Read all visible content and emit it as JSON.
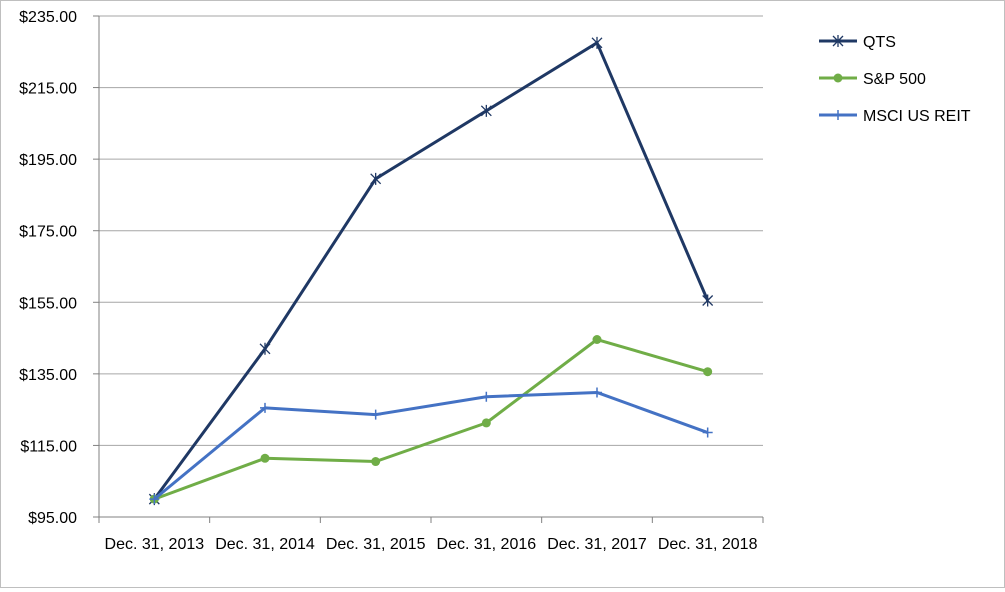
{
  "chart_data": {
    "type": "line",
    "title": "",
    "xlabel": "",
    "ylabel": "",
    "categories": [
      "Dec. 31, 2013",
      "Dec. 31, 2014",
      "Dec. 31, 2015",
      "Dec. 31, 2016",
      "Dec. 31, 2017",
      "Dec. 31, 2018"
    ],
    "ylim": [
      95,
      235
    ],
    "yticks": [
      "$95.00",
      "$115.00",
      "$135.00",
      "$155.00",
      "$175.00",
      "$195.00",
      "$215.00",
      "$235.00"
    ],
    "grid": true,
    "legend_position": "top-right",
    "series": [
      {
        "name": "QTS",
        "values": [
          100,
          142,
          189.5,
          208.5,
          227.5,
          155.5
        ],
        "color": "#1f3864",
        "marker": "asterisk"
      },
      {
        "name": "S&P 500",
        "values": [
          100,
          111.4,
          110.5,
          121.3,
          144.6,
          135.6
        ],
        "color": "#70ad47",
        "marker": "circle"
      },
      {
        "name": "MSCI US REIT",
        "values": [
          100,
          125.5,
          123.6,
          128.6,
          129.8,
          118.6
        ],
        "color": "#4472c4",
        "marker": "plus"
      }
    ]
  }
}
